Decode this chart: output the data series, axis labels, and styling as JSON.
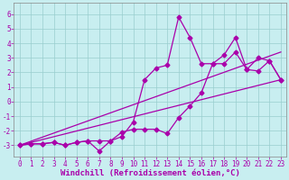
{
  "background_color": "#c8eef0",
  "line_color": "#aa00aa",
  "marker": "D",
  "markersize": 2.5,
  "linewidth": 0.9,
  "xlabel": "Windchill (Refroidissement éolien,°C)",
  "xlabel_fontsize": 6.5,
  "ylim": [
    -3.8,
    6.8
  ],
  "xlim": [
    -0.5,
    23.5
  ],
  "yticks": [
    -3,
    -2,
    -1,
    0,
    1,
    2,
    3,
    4,
    5,
    6
  ],
  "xticks": [
    0,
    1,
    2,
    3,
    4,
    5,
    6,
    7,
    8,
    9,
    10,
    11,
    12,
    13,
    14,
    15,
    16,
    17,
    18,
    19,
    20,
    21,
    22,
    23
  ],
  "grid_color": "#99cece",
  "tick_fontsize": 5.5,
  "series1_x": [
    0,
    1,
    2,
    3,
    4,
    5,
    6,
    7,
    8,
    9,
    10,
    11,
    12,
    13,
    14,
    15,
    16,
    17,
    18,
    19,
    20,
    21,
    22,
    23
  ],
  "series1_y": [
    -3,
    -2.9,
    -2.9,
    -2.8,
    -3.0,
    -2.8,
    -2.7,
    -3.4,
    -2.7,
    -2.4,
    -1.4,
    1.5,
    2.3,
    2.5,
    5.8,
    4.4,
    2.6,
    2.6,
    3.2,
    4.4,
    2.2,
    3.0,
    2.8,
    1.5
  ],
  "series2_x": [
    0,
    1,
    2,
    3,
    4,
    5,
    6,
    7,
    8,
    9,
    10,
    11,
    12,
    13,
    14,
    15,
    16,
    17,
    18,
    19,
    20,
    21,
    22,
    23
  ],
  "series2_y": [
    -3,
    -2.9,
    -2.9,
    -2.8,
    -3.0,
    -2.8,
    -2.7,
    -2.7,
    -2.7,
    -2.1,
    -1.9,
    -1.9,
    -1.9,
    -2.2,
    -1.1,
    -0.3,
    0.6,
    2.6,
    2.6,
    3.4,
    2.2,
    2.1,
    2.8,
    1.5
  ],
  "series3_x": [
    0,
    23
  ],
  "series3_y": [
    -3.0,
    1.5
  ],
  "series4_x": [
    0,
    23
  ],
  "series4_y": [
    -3.0,
    3.4
  ]
}
